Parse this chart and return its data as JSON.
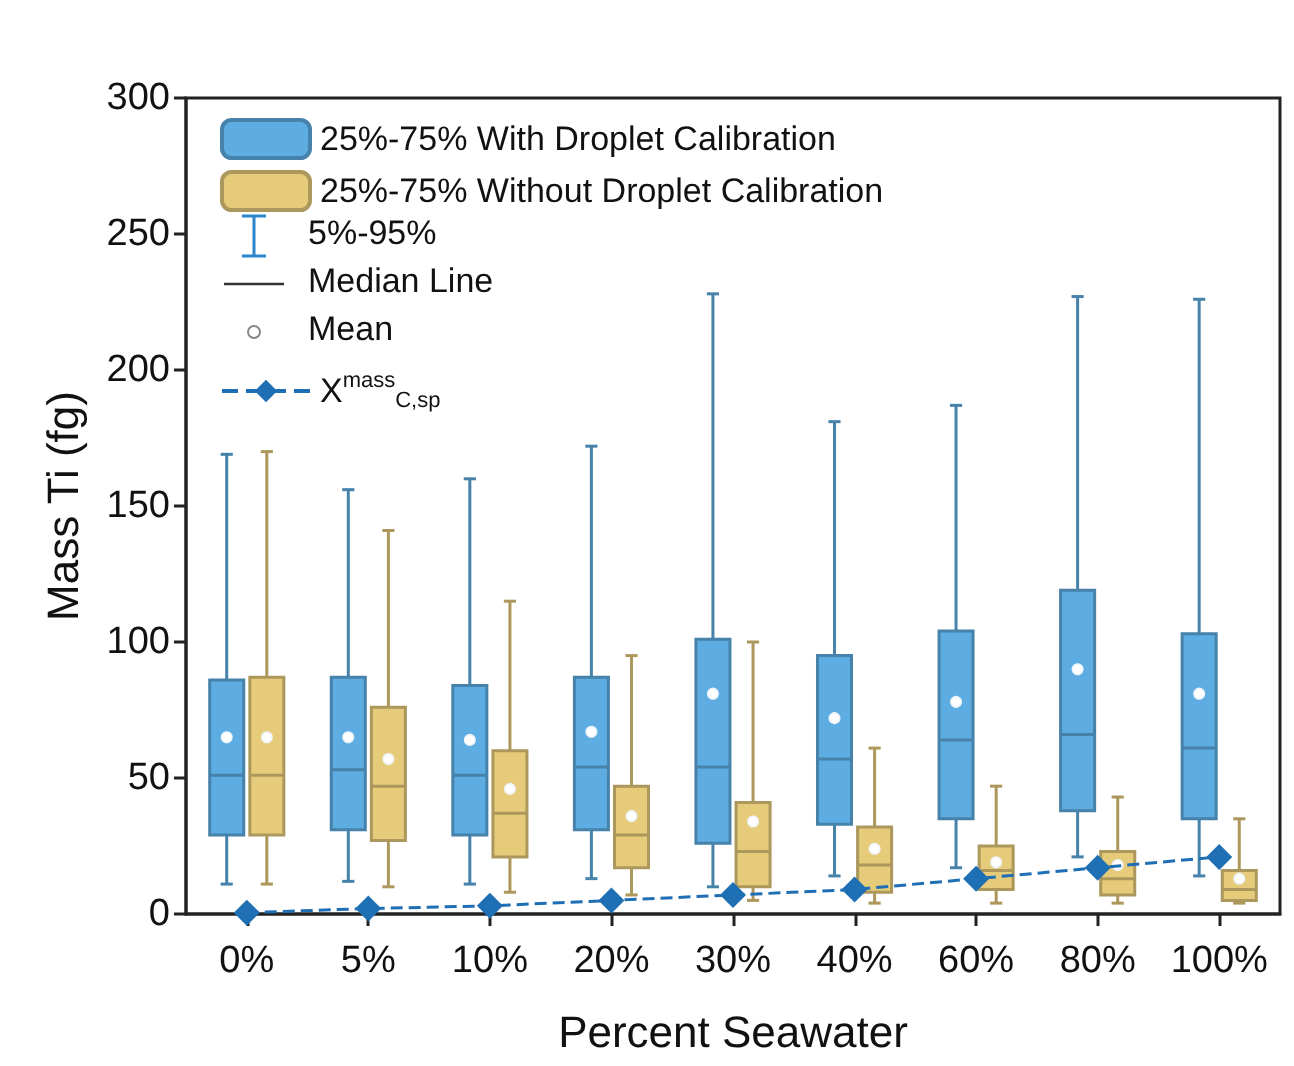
{
  "chart_data": {
    "type": "box",
    "xlabel": "Percent Seawater",
    "ylabel": "Mass Ti (fg)",
    "categories": [
      "0%",
      "5%",
      "10%",
      "20%",
      "30%",
      "40%",
      "60%",
      "80%",
      "100%"
    ],
    "ylim": [
      0,
      300
    ],
    "yticks": [
      0,
      50,
      100,
      150,
      200,
      250,
      300
    ],
    "grid": false,
    "legend": "top left",
    "marker": "diamond",
    "line_style": "dashed",
    "annotations": [
      "5%-95%",
      "Median Line",
      "Mean"
    ],
    "series": [
      {
        "name": "25%-75% With Droplet Calibration",
        "color": "#5dade2",
        "boxes": [
          {
            "low": 11,
            "q1": 29,
            "median": 51,
            "q3": 86,
            "high": 169,
            "mean": 65
          },
          {
            "low": 12,
            "q1": 31,
            "median": 53,
            "q3": 87,
            "high": 156,
            "mean": 65
          },
          {
            "low": 11,
            "q1": 29,
            "median": 51,
            "q3": 84,
            "high": 160,
            "mean": 64
          },
          {
            "low": 13,
            "q1": 31,
            "median": 54,
            "q3": 87,
            "high": 172,
            "mean": 67
          },
          {
            "low": 10,
            "q1": 26,
            "median": 54,
            "q3": 101,
            "high": 228,
            "mean": 81
          },
          {
            "low": 14,
            "q1": 33,
            "median": 57,
            "q3": 95,
            "high": 181,
            "mean": 72
          },
          {
            "low": 17,
            "q1": 35,
            "median": 64,
            "q3": 104,
            "high": 187,
            "mean": 78
          },
          {
            "low": 21,
            "q1": 38,
            "median": 66,
            "q3": 119,
            "high": 227,
            "mean": 90
          },
          {
            "low": 14,
            "q1": 35,
            "median": 61,
            "q3": 103,
            "high": 226,
            "mean": 81
          }
        ]
      },
      {
        "name": "25%-75% Without Droplet Calibration",
        "color": "#e5cb7a",
        "boxes": [
          {
            "low": 11,
            "q1": 29,
            "median": 51,
            "q3": 87,
            "high": 170,
            "mean": 65
          },
          {
            "low": 10,
            "q1": 27,
            "median": 47,
            "q3": 76,
            "high": 141,
            "mean": 57
          },
          {
            "low": 8,
            "q1": 21,
            "median": 37,
            "q3": 60,
            "high": 115,
            "mean": 46
          },
          {
            "low": 7,
            "q1": 17,
            "median": 29,
            "q3": 47,
            "high": 95,
            "mean": 36
          },
          {
            "low": 5,
            "q1": 10,
            "median": 23,
            "q3": 41,
            "high": 100,
            "mean": 34
          },
          {
            "low": 4,
            "q1": 8,
            "median": 18,
            "q3": 32,
            "high": 61,
            "mean": 24
          },
          {
            "low": 4,
            "q1": 9,
            "median": 16,
            "q3": 25,
            "high": 47,
            "mean": 19
          },
          {
            "low": 4,
            "q1": 7,
            "median": 13,
            "q3": 23,
            "high": 43,
            "mean": 18
          },
          {
            "low": 4,
            "q1": 5,
            "median": 9,
            "q3": 16,
            "high": 35,
            "mean": 13
          }
        ]
      },
      {
        "name": "X$^{mass}$$_{C,sp}$",
        "type": "line",
        "color": "#1f6fb4",
        "values": [
          0.5,
          2,
          3,
          5,
          7,
          9,
          13,
          17,
          21
        ]
      }
    ]
  }
}
